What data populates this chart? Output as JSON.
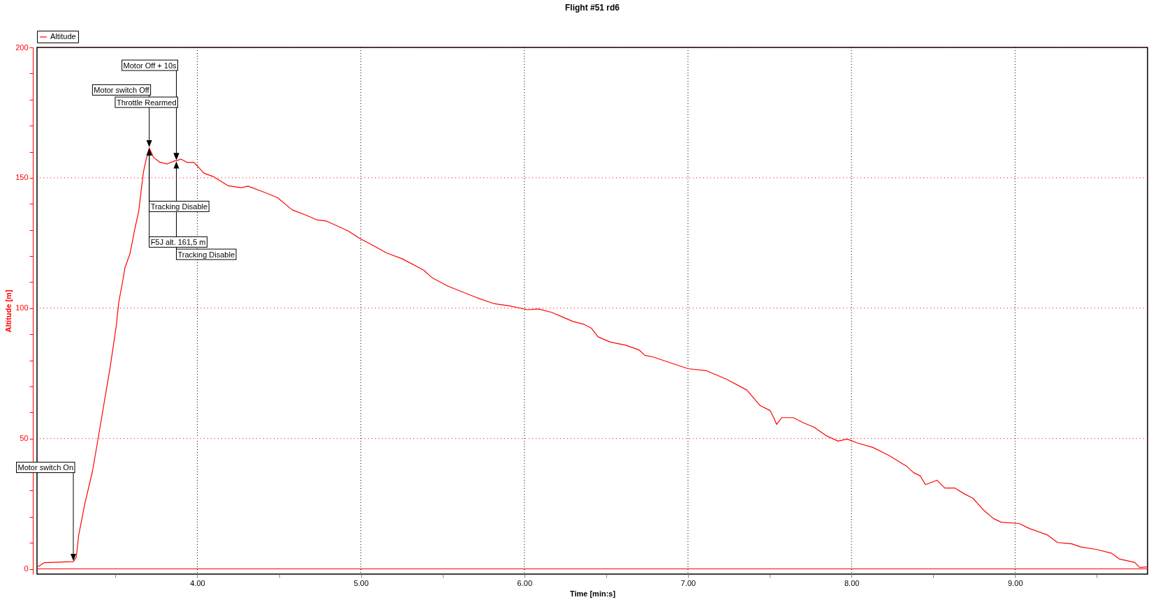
{
  "chart_data": {
    "type": "line",
    "title": "Flight #51 rd6",
    "xlabel": "Time [min:s]",
    "ylabel": "Altitude [m]",
    "xlim": [
      3.02,
      9.81
    ],
    "ylim": [
      -2,
      200
    ],
    "xticks": [
      {
        "value": 3.5,
        "label": null
      },
      {
        "value": 4,
        "label": "4.00"
      },
      {
        "value": 4.5,
        "label": null
      },
      {
        "value": 5,
        "label": "5.00"
      },
      {
        "value": 5.5,
        "label": null
      },
      {
        "value": 6,
        "label": "6.00"
      },
      {
        "value": 6.5,
        "label": null
      },
      {
        "value": 7,
        "label": "7.00"
      },
      {
        "value": 7.5,
        "label": null
      },
      {
        "value": 8,
        "label": "8.00"
      },
      {
        "value": 8.5,
        "label": null
      },
      {
        "value": 9,
        "label": "9.00"
      },
      {
        "value": 9.5,
        "label": null
      }
    ],
    "yticks": [
      0,
      {
        "value": 10,
        "label": null
      },
      {
        "value": 20,
        "label": null
      },
      {
        "value": 30,
        "label": null
      },
      {
        "value": 40,
        "label": null
      },
      50,
      {
        "value": 60,
        "label": null
      },
      {
        "value": 70,
        "label": null
      },
      {
        "value": 80,
        "label": null
      },
      {
        "value": 90,
        "label": null
      },
      100,
      {
        "value": 110,
        "label": null
      },
      {
        "value": 120,
        "label": null
      },
      {
        "value": 130,
        "label": null
      },
      {
        "value": 140,
        "label": null
      },
      150,
      {
        "value": 160,
        "label": null
      },
      {
        "value": 170,
        "label": null
      },
      {
        "value": 180,
        "label": null
      },
      {
        "value": 190,
        "label": null
      },
      200
    ],
    "grid": true,
    "legend": "top left",
    "ref_lines": [
      {
        "axis": "y",
        "value": 0,
        "color": "#ff0000"
      }
    ],
    "annotations": [
      "Motor switch On",
      "Motor switch Off",
      "Throttle Rearmed",
      "Motor Off + 10s",
      "Tracking Disable",
      "F5J alt. 161,5 m",
      "Tracking Disable"
    ],
    "series": [
      {
        "name": "Altitude",
        "color": "#ff0000",
        "x": [
          3.026,
          3.065,
          3.242,
          3.26,
          3.275,
          3.313,
          3.359,
          3.39,
          3.428,
          3.466,
          3.504,
          3.52,
          3.543,
          3.558,
          3.588,
          3.619,
          3.642,
          3.656,
          3.671,
          3.687,
          3.706,
          3.732,
          3.77,
          3.816,
          3.861,
          3.872,
          3.9,
          3.937,
          3.98,
          4.04,
          4.1,
          4.19,
          4.27,
          4.31,
          4.4,
          4.49,
          4.58,
          4.66,
          4.73,
          4.79,
          4.92,
          4.995,
          5.07,
          5.156,
          5.254,
          5.384,
          5.433,
          5.53,
          5.61,
          5.71,
          5.81,
          5.906,
          6.02,
          6.085,
          6.166,
          6.23,
          6.297,
          6.36,
          6.41,
          6.45,
          6.525,
          6.62,
          6.7,
          6.737,
          6.79,
          7.0,
          7.114,
          7.23,
          7.36,
          7.44,
          7.503,
          7.526,
          7.542,
          7.573,
          7.644,
          7.707,
          7.77,
          7.848,
          7.918,
          7.973,
          8.036,
          8.13,
          8.224,
          8.334,
          8.38,
          8.42,
          8.452,
          8.522,
          8.57,
          8.632,
          8.695,
          8.742,
          8.805,
          8.868,
          8.915,
          9.025,
          9.088,
          9.198,
          9.26,
          9.347,
          9.402,
          9.496,
          9.59,
          9.637,
          9.731,
          9.762,
          9.81
        ],
        "values": [
          0.8,
          2.4,
          2.8,
          4.5,
          13,
          25.2,
          37.4,
          48.7,
          62.8,
          76.9,
          92.9,
          102.3,
          110.1,
          115.6,
          120.8,
          130.7,
          137.2,
          144.7,
          152.3,
          157,
          161.5,
          157.9,
          156,
          155.3,
          156.5,
          156.5,
          157.2,
          155.9,
          155.9,
          151.8,
          150.4,
          146.9,
          146.2,
          146.8,
          144.7,
          142.4,
          137.7,
          135.8,
          133.9,
          133.4,
          129.7,
          126.7,
          124.2,
          121.2,
          118.9,
          114.6,
          111.8,
          108.5,
          106.5,
          104,
          101.8,
          100.9,
          99.4,
          99.7,
          98.4,
          96.7,
          94.9,
          93.9,
          92.3,
          89,
          87,
          85.8,
          84,
          81.9,
          81.2,
          76.8,
          76,
          72.9,
          68.6,
          62.7,
          60.7,
          57.8,
          55.4,
          58,
          58,
          56,
          54.4,
          51,
          49,
          49.8,
          48.3,
          46.6,
          43.7,
          39.5,
          36.9,
          35.7,
          32.3,
          34,
          31,
          31,
          28.6,
          27.1,
          22.7,
          19.3,
          17.9,
          17.4,
          15.5,
          13,
          10.1,
          9.6,
          8.4,
          7.5,
          6,
          3.8,
          2.5,
          0.5,
          0.8
        ]
      }
    ]
  }
}
